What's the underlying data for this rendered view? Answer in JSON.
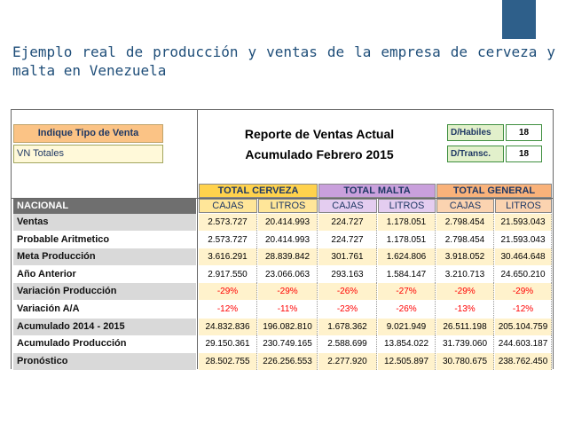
{
  "slide": {
    "title": "Ejemplo real de producción y ventas de la empresa de cerveza y malta en Venezuela"
  },
  "report": {
    "selector_label": "Indique Tipo de Venta",
    "selector_value": "VN Totales",
    "title": "Reporte de Ventas Actual",
    "subtitle": "Acumulado Febrero 2015",
    "dhabiles_label": "D/Habiles",
    "dhabiles_value": "18",
    "dtransc_label": "D/Transc.",
    "dtransc_value": "18",
    "nacional_label": "NACIONAL",
    "groups": [
      "TOTAL CERVEZA",
      "TOTAL MALTA",
      "TOTAL GENERAL"
    ],
    "subheaders": [
      "CAJAS",
      "LITROS",
      "CAJAS",
      "LITROS",
      "CAJAS",
      "LITROS"
    ]
  },
  "table": {
    "rows": [
      {
        "label": "Ventas",
        "values": [
          "2.573.727",
          "20.414.993",
          "224.727",
          "1.178.051",
          "2.798.454",
          "21.593.043"
        ]
      },
      {
        "label": "Probable Aritmetico",
        "values": [
          "2.573.727",
          "20.414.993",
          "224.727",
          "1.178.051",
          "2.798.454",
          "21.593.043"
        ]
      },
      {
        "label": "Meta Producción",
        "values": [
          "3.616.291",
          "28.839.842",
          "301.761",
          "1.624.806",
          "3.918.052",
          "30.464.648"
        ]
      },
      {
        "label": "Año Anterior",
        "values": [
          "2.917.550",
          "23.066.063",
          "293.163",
          "1.584.147",
          "3.210.713",
          "24.650.210"
        ]
      },
      {
        "label": "Variación Producción",
        "values": [
          "-29%",
          "-29%",
          "-26%",
          "-27%",
          "-29%",
          "-29%"
        ]
      },
      {
        "label": "Variación A/A",
        "values": [
          "-12%",
          "-11%",
          "-23%",
          "-26%",
          "-13%",
          "-12%"
        ]
      },
      {
        "label": "Acumulado 2014 - 2015",
        "values": [
          "24.832.836",
          "196.082.810",
          "1.678.362",
          "9.021.949",
          "26.511.198",
          "205.104.759"
        ]
      },
      {
        "label": "Acumulado Producción",
        "values": [
          "29.150.361",
          "230.749.165",
          "2.588.699",
          "13.854.022",
          "31.739.060",
          "244.603.187"
        ]
      },
      {
        "label": "Pronóstico",
        "values": [
          "28.502.755",
          "226.256.553",
          "2.277.920",
          "12.505.897",
          "30.780.675",
          "238.762.450"
        ]
      }
    ]
  },
  "colors": {
    "title": "#1f4e79",
    "accent": "#2e5f8a",
    "cerveza": "#fbc02d",
    "malta": "#c9a0dc",
    "general": "#f4a460",
    "negative": "#ff0000"
  }
}
